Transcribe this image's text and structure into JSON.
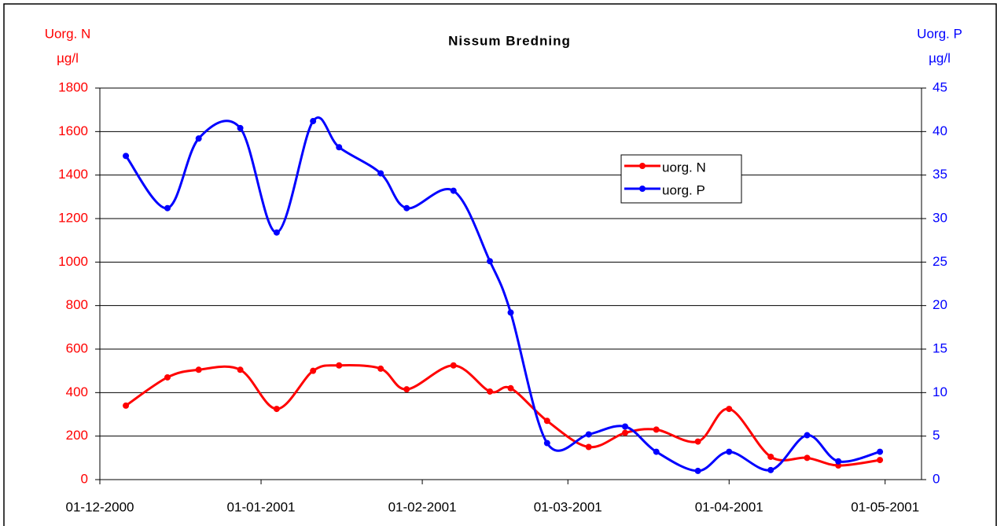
{
  "chart_data": {
    "type": "line",
    "title": "Nissum Bredning",
    "y_label": [
      "Uorg. N",
      "µg/l"
    ],
    "y2_label": [
      "Uorg. P",
      "µg/l"
    ],
    "x": [
      "2000-12-06",
      "2000-12-14",
      "2000-12-20",
      "2000-12-28",
      "2001-01-04",
      "2001-01-11",
      "2001-01-16",
      "2001-01-24",
      "2001-01-29",
      "2001-02-07",
      "2001-02-14",
      "2001-02-18",
      "2001-02-25",
      "2001-03-05",
      "2001-03-12",
      "2001-03-18",
      "2001-03-26",
      "2001-04-01",
      "2001-04-09",
      "2001-04-16",
      "2001-04-22",
      "2001-04-30"
    ],
    "series": [
      {
        "name": "uorg. N",
        "color": "#ff0000",
        "axis": "y",
        "values": [
          340,
          470,
          505,
          505,
          325,
          500,
          525,
          510,
          415,
          525,
          405,
          420,
          270,
          150,
          215,
          230,
          175,
          325,
          105,
          100,
          65,
          90
        ]
      },
      {
        "name": "uorg. P",
        "color": "#0000ff",
        "axis": "y2",
        "values": [
          37.2,
          31.2,
          39.2,
          40.4,
          28.4,
          41.2,
          38.2,
          35.2,
          31.2,
          33.2,
          25.1,
          19.2,
          4.2,
          5.2,
          6.1,
          3.2,
          1.0,
          3.2,
          1.1,
          5.1,
          2.1,
          3.2
        ]
      }
    ],
    "xlim": [
      "2000-12-01",
      "2001-05-08"
    ],
    "xticks": [
      {
        "value": "2000-12-01",
        "label": "01-12-2000"
      },
      {
        "value": "2001-01-01",
        "label": "01-01-2001"
      },
      {
        "value": "2001-02-01",
        "label": "01-02-2001"
      },
      {
        "value": "2001-03-01",
        "label": "01-03-2001"
      },
      {
        "value": "2001-04-01",
        "label": "01-04-2001"
      },
      {
        "value": "2001-05-01",
        "label": "01-05-2001"
      }
    ],
    "ylim": [
      0,
      1800
    ],
    "yticks": [
      0,
      200,
      400,
      600,
      800,
      1000,
      1200,
      1400,
      1600,
      1800
    ],
    "y2lim": [
      0,
      45
    ],
    "y2ticks": [
      0,
      5,
      10,
      15,
      20,
      25,
      30,
      35,
      40,
      45
    ],
    "grid": true,
    "legend": "upper right"
  }
}
